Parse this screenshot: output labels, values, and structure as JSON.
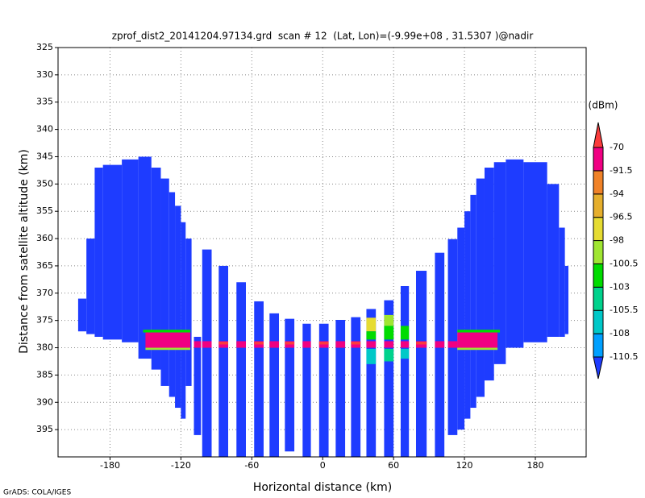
{
  "chart_data": {
    "type": "field",
    "title": "zprof_dist2_20141204.97134.grd  scan # 12  (Lat, Lon)=(-9.99e+08 , 31.5307 )@nadir",
    "xlabel": "Horizontal distance (km)",
    "ylabel": "Distance from satellite altitude (km)",
    "credit": "GrADS: COLA/IGES",
    "xlim": [
      -224,
      223
    ],
    "ylim": [
      400,
      325
    ],
    "xticks": [
      -180,
      -120,
      -60,
      0,
      60,
      120,
      180
    ],
    "yticks": [
      325,
      330,
      335,
      340,
      345,
      350,
      355,
      360,
      365,
      370,
      375,
      380,
      385,
      390,
      395
    ],
    "grid": true,
    "colorbar": {
      "label": "(dBm)",
      "levels": [
        -110.5,
        -108,
        -105.5,
        -103,
        -100.5,
        -98,
        -96.5,
        -94,
        -91.5,
        -70
      ],
      "colors": [
        "#1e3cff",
        "#00a0ff",
        "#00c8c8",
        "#00d28c",
        "#00dc00",
        "#a0e632",
        "#e6dc32",
        "#e6af2d",
        "#f08228",
        "#f00082",
        "#fa3c3c"
      ]
    },
    "cells": [
      {
        "x": [
          -207,
          -200
        ],
        "y": [
          371,
          377
        ],
        "value": -112
      },
      {
        "x": [
          -200,
          -193
        ],
        "y": [
          360,
          377.5
        ],
        "value": -112
      },
      {
        "x": [
          -193,
          -186
        ],
        "y": [
          347,
          378
        ],
        "value": -112
      },
      {
        "x": [
          -186,
          -170
        ],
        "y": [
          346.5,
          378.5
        ],
        "value": -112
      },
      {
        "x": [
          -170,
          -156
        ],
        "y": [
          345.5,
          379
        ],
        "value": -112
      },
      {
        "x": [
          -156,
          -145
        ],
        "y": [
          345,
          382
        ],
        "value": -112
      },
      {
        "x": [
          -145,
          -137
        ],
        "y": [
          347,
          384
        ],
        "value": -112
      },
      {
        "x": [
          -137,
          -130
        ],
        "y": [
          349,
          387
        ],
        "value": -112
      },
      {
        "x": [
          -130,
          -125
        ],
        "y": [
          351.5,
          389
        ],
        "value": -112
      },
      {
        "x": [
          -125,
          -120
        ],
        "y": [
          354,
          391
        ],
        "value": -112
      },
      {
        "x": [
          -120,
          -116
        ],
        "y": [
          357,
          393
        ],
        "value": -112
      },
      {
        "x": [
          -116,
          -111
        ],
        "y": [
          360,
          387
        ],
        "value": -112
      },
      {
        "x": [
          -109,
          -103
        ],
        "y": [
          378,
          396
        ],
        "value": -112
      },
      {
        "x": [
          -102,
          -94
        ],
        "y": [
          362,
          400
        ],
        "value": -112
      },
      {
        "x": [
          -88,
          -80
        ],
        "y": [
          365,
          400
        ],
        "value": -112
      },
      {
        "x": [
          -73,
          -65
        ],
        "y": [
          368,
          400
        ],
        "value": -112
      },
      {
        "x": [
          -58,
          -50
        ],
        "y": [
          371.5,
          400
        ],
        "value": -112
      },
      {
        "x": [
          -45,
          -37
        ],
        "y": [
          373.7,
          400
        ],
        "value": -112
      },
      {
        "x": [
          -32,
          -24
        ],
        "y": [
          374.7,
          399
        ],
        "value": -112
      },
      {
        "x": [
          -17,
          -10
        ],
        "y": [
          375.6,
          400
        ],
        "value": -112
      },
      {
        "x": [
          -3,
          5
        ],
        "y": [
          375.6,
          400
        ],
        "value": -112
      },
      {
        "x": [
          11,
          19
        ],
        "y": [
          374.9,
          400
        ],
        "value": -112
      },
      {
        "x": [
          24,
          32
        ],
        "y": [
          374.4,
          400
        ],
        "value": -112
      },
      {
        "x": [
          37,
          45
        ],
        "y": [
          372.9,
          400
        ],
        "value": -112
      },
      {
        "x": [
          52,
          60
        ],
        "y": [
          371.3,
          400
        ],
        "value": -112
      },
      {
        "x": [
          66,
          73
        ],
        "y": [
          368.7,
          400
        ],
        "value": -112
      },
      {
        "x": [
          79,
          88
        ],
        "y": [
          365.9,
          400
        ],
        "value": -112
      },
      {
        "x": [
          95,
          103
        ],
        "y": [
          362.6,
          400
        ],
        "value": -112
      },
      {
        "x": [
          106,
          114
        ],
        "y": [
          360.1,
          396
        ],
        "value": -112
      },
      {
        "x": [
          114,
          120
        ],
        "y": [
          358,
          395
        ],
        "value": -112
      },
      {
        "x": [
          120,
          125
        ],
        "y": [
          355,
          393
        ],
        "value": -112
      },
      {
        "x": [
          125,
          130
        ],
        "y": [
          352,
          391
        ],
        "value": -112
      },
      {
        "x": [
          130,
          137
        ],
        "y": [
          349,
          389
        ],
        "value": -112
      },
      {
        "x": [
          137,
          145
        ],
        "y": [
          347,
          386
        ],
        "value": -112
      },
      {
        "x": [
          145,
          155
        ],
        "y": [
          346,
          383
        ],
        "value": -112
      },
      {
        "x": [
          155,
          170
        ],
        "y": [
          345.5,
          380
        ],
        "value": -112
      },
      {
        "x": [
          170,
          190
        ],
        "y": [
          346,
          379
        ],
        "value": -112
      },
      {
        "x": [
          190,
          200
        ],
        "y": [
          350,
          378
        ],
        "value": -112
      },
      {
        "x": [
          200,
          205
        ],
        "y": [
          358,
          378
        ],
        "value": -112
      },
      {
        "x": [
          205,
          208
        ],
        "y": [
          365,
          377.5
        ],
        "value": -112
      },
      {
        "x": [
          -152,
          -112
        ],
        "y": [
          376.7,
          377.2
        ],
        "value": -101
      },
      {
        "x": [
          -150,
          -112
        ],
        "y": [
          377.2,
          380
        ],
        "value": -85
      },
      {
        "x": [
          -150,
          -112
        ],
        "y": [
          380,
          380.4
        ],
        "value": -98.5
      },
      {
        "x": [
          114,
          150
        ],
        "y": [
          376.7,
          377.2
        ],
        "value": -101
      },
      {
        "x": [
          114,
          148
        ],
        "y": [
          377.2,
          380
        ],
        "value": -85
      },
      {
        "x": [
          114,
          148
        ],
        "y": [
          380,
          380.4
        ],
        "value": -98.5
      },
      {
        "x": [
          -109,
          -103
        ],
        "y": [
          378.8,
          380
        ],
        "value": -85
      },
      {
        "x": [
          -102,
          -94
        ],
        "y": [
          378.8,
          380
        ],
        "value": -85
      },
      {
        "x": [
          -88,
          -80
        ],
        "y": [
          378.8,
          380
        ],
        "value": -85
      },
      {
        "x": [
          -73,
          -65
        ],
        "y": [
          378.8,
          380
        ],
        "value": -85
      },
      {
        "x": [
          -58,
          -50
        ],
        "y": [
          378.8,
          380
        ],
        "value": -85
      },
      {
        "x": [
          -45,
          -37
        ],
        "y": [
          378.8,
          380
        ],
        "value": -85
      },
      {
        "x": [
          -32,
          -24
        ],
        "y": [
          378.8,
          380
        ],
        "value": -85
      },
      {
        "x": [
          -17,
          -10
        ],
        "y": [
          378.8,
          380
        ],
        "value": -85
      },
      {
        "x": [
          -3,
          5
        ],
        "y": [
          378.8,
          380
        ],
        "value": -85
      },
      {
        "x": [
          11,
          19
        ],
        "y": [
          378.8,
          380
        ],
        "value": -85
      },
      {
        "x": [
          24,
          32
        ],
        "y": [
          378.8,
          380
        ],
        "value": -85
      },
      {
        "x": [
          37,
          45
        ],
        "y": [
          378.8,
          380
        ],
        "value": -85
      },
      {
        "x": [
          52,
          60
        ],
        "y": [
          378.8,
          380
        ],
        "value": -85
      },
      {
        "x": [
          66,
          73
        ],
        "y": [
          378.8,
          380
        ],
        "value": -85
      },
      {
        "x": [
          79,
          88
        ],
        "y": [
          378.8,
          380
        ],
        "value": -85
      },
      {
        "x": [
          95,
          103
        ],
        "y": [
          378.8,
          380
        ],
        "value": -85
      },
      {
        "x": [
          106,
          114
        ],
        "y": [
          378.8,
          380
        ],
        "value": -85
      },
      {
        "x": [
          -88,
          -80
        ],
        "y": [
          378.9,
          379.4
        ],
        "value": -68
      },
      {
        "x": [
          -58,
          -50
        ],
        "y": [
          378.9,
          379.4
        ],
        "value": -68
      },
      {
        "x": [
          -32,
          -24
        ],
        "y": [
          378.9,
          379.4
        ],
        "value": -68
      },
      {
        "x": [
          -3,
          5
        ],
        "y": [
          378.9,
          379.4
        ],
        "value": -68
      },
      {
        "x": [
          24,
          32
        ],
        "y": [
          378.9,
          379.4
        ],
        "value": -68
      },
      {
        "x": [
          79,
          88
        ],
        "y": [
          378.9,
          379.4
        ],
        "value": -68
      },
      {
        "x": [
          37,
          45
        ],
        "y": [
          374.5,
          377
        ],
        "value": -97
      },
      {
        "x": [
          37,
          45
        ],
        "y": [
          377,
          378.5
        ],
        "value": -101
      },
      {
        "x": [
          37,
          45
        ],
        "y": [
          380.2,
          383
        ],
        "value": -106.5
      },
      {
        "x": [
          52,
          60
        ],
        "y": [
          374,
          376
        ],
        "value": -99
      },
      {
        "x": [
          52,
          60
        ],
        "y": [
          376,
          378.5
        ],
        "value": -102
      },
      {
        "x": [
          52,
          60
        ],
        "y": [
          380.2,
          382.5
        ],
        "value": -104
      },
      {
        "x": [
          66,
          73
        ],
        "y": [
          376,
          378.5
        ],
        "value": -102
      },
      {
        "x": [
          66,
          73
        ],
        "y": [
          380.2,
          382
        ],
        "value": -107
      }
    ]
  }
}
